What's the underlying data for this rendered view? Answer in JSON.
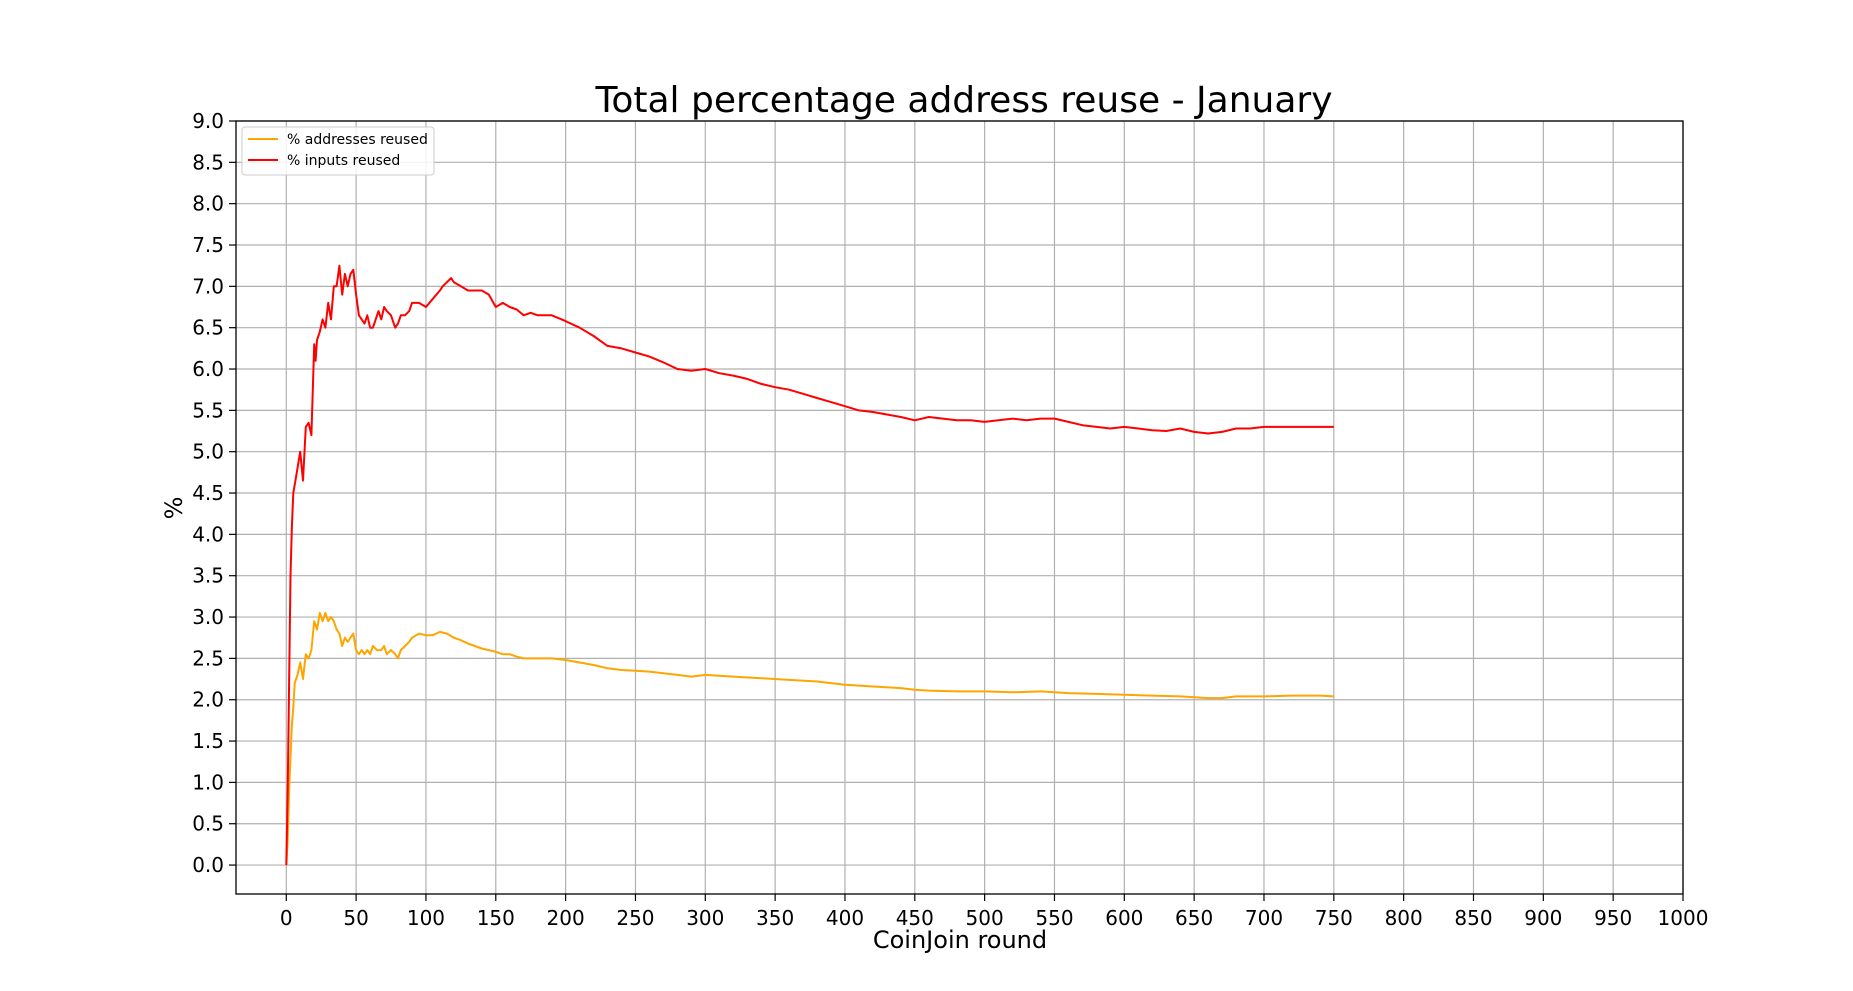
{
  "chart_data": {
    "type": "line",
    "title": "Total percentage address reuse - January",
    "xlabel": "CoinJoin round",
    "ylabel": "%",
    "xlim": [
      -36,
      1000
    ],
    "ylim": [
      -0.35,
      9.0
    ],
    "xticks": [
      0,
      50,
      100,
      150,
      200,
      250,
      300,
      350,
      400,
      450,
      500,
      550,
      600,
      650,
      700,
      750,
      800,
      850,
      900,
      950,
      1000
    ],
    "xtick_labels": [
      "0",
      "50",
      "100",
      "150",
      "200",
      "250",
      "300",
      "350",
      "400",
      "450",
      "500",
      "550",
      "600",
      "650",
      "700",
      "750",
      "800",
      "850",
      "900",
      "950",
      "1000"
    ],
    "yticks": [
      0,
      0.5,
      1,
      1.5,
      2,
      2.5,
      3,
      3.5,
      4,
      4.5,
      5,
      5.5,
      6,
      6.5,
      7,
      7.5,
      8,
      8.5,
      9
    ],
    "ytick_labels": [
      "0.0",
      "0.5",
      "1.0",
      "1.5",
      "2.0",
      "2.5",
      "3.0",
      "3.5",
      "4.0",
      "4.5",
      "5.0",
      "5.5",
      "6.0",
      "6.5",
      "7.0",
      "7.5",
      "8.0",
      "8.5",
      "9.0"
    ],
    "grid": true,
    "legend_position": "top-left",
    "series": [
      {
        "name": "% addresses reused",
        "color": "#ffa500",
        "x": [
          0,
          1,
          2,
          3,
          4,
          5,
          6,
          8,
          10,
          12,
          14,
          16,
          18,
          20,
          22,
          24,
          26,
          28,
          30,
          32,
          34,
          36,
          38,
          40,
          42,
          44,
          46,
          48,
          50,
          52,
          54,
          56,
          58,
          60,
          62,
          65,
          68,
          70,
          72,
          75,
          78,
          80,
          82,
          85,
          88,
          90,
          95,
          100,
          105,
          110,
          115,
          120,
          125,
          130,
          135,
          140,
          145,
          150,
          155,
          160,
          165,
          170,
          180,
          190,
          200,
          210,
          220,
          230,
          240,
          250,
          260,
          270,
          280,
          290,
          300,
          320,
          340,
          360,
          380,
          400,
          420,
          440,
          450,
          460,
          480,
          500,
          520,
          540,
          560,
          580,
          600,
          620,
          640,
          660,
          670,
          680,
          700,
          720,
          740,
          750
        ],
        "y": [
          0.0,
          0.3,
          0.9,
          1.3,
          1.7,
          1.9,
          2.2,
          2.3,
          2.45,
          2.25,
          2.55,
          2.5,
          2.6,
          2.95,
          2.85,
          3.05,
          2.95,
          3.05,
          2.95,
          3.0,
          2.95,
          2.85,
          2.8,
          2.65,
          2.75,
          2.7,
          2.75,
          2.8,
          2.6,
          2.55,
          2.6,
          2.55,
          2.6,
          2.55,
          2.65,
          2.6,
          2.6,
          2.65,
          2.55,
          2.6,
          2.55,
          2.5,
          2.6,
          2.65,
          2.7,
          2.75,
          2.8,
          2.78,
          2.78,
          2.82,
          2.8,
          2.75,
          2.72,
          2.68,
          2.65,
          2.62,
          2.6,
          2.58,
          2.55,
          2.55,
          2.52,
          2.5,
          2.5,
          2.5,
          2.48,
          2.45,
          2.42,
          2.38,
          2.36,
          2.35,
          2.34,
          2.32,
          2.3,
          2.28,
          2.3,
          2.28,
          2.26,
          2.24,
          2.22,
          2.18,
          2.16,
          2.14,
          2.12,
          2.11,
          2.1,
          2.1,
          2.09,
          2.1,
          2.08,
          2.07,
          2.06,
          2.05,
          2.04,
          2.02,
          2.02,
          2.04,
          2.04,
          2.05,
          2.05,
          2.04
        ]
      },
      {
        "name": "% inputs reused",
        "color": "#ff0000",
        "x": [
          0,
          1,
          2,
          3,
          4,
          5,
          6,
          8,
          10,
          12,
          14,
          16,
          18,
          20,
          21,
          22,
          24,
          26,
          28,
          30,
          32,
          34,
          36,
          38,
          40,
          42,
          44,
          46,
          48,
          50,
          52,
          54,
          56,
          58,
          60,
          62,
          64,
          66,
          68,
          70,
          72,
          75,
          78,
          80,
          82,
          85,
          88,
          90,
          95,
          100,
          105,
          110,
          112,
          115,
          118,
          120,
          125,
          130,
          135,
          140,
          145,
          150,
          155,
          160,
          165,
          170,
          175,
          180,
          185,
          190,
          200,
          210,
          220,
          230,
          240,
          250,
          260,
          270,
          280,
          290,
          300,
          310,
          320,
          330,
          340,
          350,
          360,
          370,
          380,
          390,
          400,
          410,
          420,
          430,
          440,
          450,
          460,
          470,
          480,
          490,
          500,
          510,
          520,
          530,
          540,
          550,
          560,
          570,
          580,
          590,
          600,
          610,
          620,
          630,
          640,
          650,
          660,
          670,
          680,
          690,
          700,
          710,
          720,
          730,
          740,
          750
        ],
        "y": [
          0.0,
          0.9,
          2.2,
          3.5,
          4.1,
          4.5,
          4.6,
          4.8,
          5.0,
          4.65,
          5.3,
          5.35,
          5.2,
          6.3,
          6.1,
          6.35,
          6.45,
          6.6,
          6.5,
          6.8,
          6.6,
          7.0,
          7.0,
          7.25,
          6.9,
          7.15,
          7.0,
          7.15,
          7.2,
          6.9,
          6.65,
          6.6,
          6.55,
          6.65,
          6.5,
          6.5,
          6.6,
          6.7,
          6.6,
          6.75,
          6.7,
          6.65,
          6.5,
          6.55,
          6.65,
          6.65,
          6.7,
          6.8,
          6.8,
          6.75,
          6.85,
          6.95,
          7.0,
          7.05,
          7.1,
          7.05,
          7.0,
          6.95,
          6.95,
          6.95,
          6.9,
          6.75,
          6.8,
          6.75,
          6.72,
          6.65,
          6.68,
          6.65,
          6.65,
          6.65,
          6.58,
          6.5,
          6.4,
          6.28,
          6.25,
          6.2,
          6.15,
          6.08,
          6.0,
          5.98,
          6.0,
          5.95,
          5.92,
          5.88,
          5.82,
          5.78,
          5.75,
          5.7,
          5.65,
          5.6,
          5.55,
          5.5,
          5.48,
          5.45,
          5.42,
          5.38,
          5.42,
          5.4,
          5.38,
          5.38,
          5.36,
          5.38,
          5.4,
          5.38,
          5.4,
          5.4,
          5.36,
          5.32,
          5.3,
          5.28,
          5.3,
          5.28,
          5.26,
          5.25,
          5.28,
          5.24,
          5.22,
          5.24,
          5.28,
          5.28,
          5.3,
          5.3,
          5.3,
          5.3,
          5.3,
          5.3
        ]
      }
    ]
  }
}
